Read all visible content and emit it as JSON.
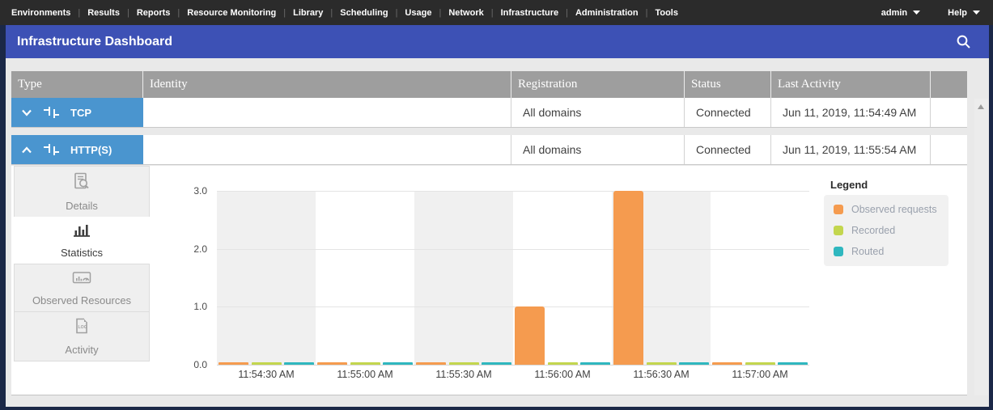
{
  "nav": {
    "items": [
      "Environments",
      "Results",
      "Reports",
      "Resource Monitoring",
      "Library",
      "Scheduling",
      "Usage",
      "Network",
      "Infrastructure",
      "Administration",
      "Tools"
    ],
    "user_menu": "admin",
    "help_menu": "Help"
  },
  "header": {
    "title": "Infrastructure Dashboard"
  },
  "table": {
    "columns": [
      "Type",
      "Identity",
      "Registration",
      "Status",
      "Last Activity"
    ],
    "rows": [
      {
        "type": "TCP",
        "expanded": false,
        "identity": "",
        "registration": "All domains",
        "status": "Connected",
        "last_activity": "Jun 11, 2019, 11:54:49 AM"
      },
      {
        "type": "HTTP(S)",
        "expanded": true,
        "identity": "",
        "registration": "All domains",
        "status": "Connected",
        "last_activity": "Jun 11, 2019, 11:55:54 AM"
      }
    ]
  },
  "tabs": [
    {
      "label": "Details",
      "icon": "details-icon",
      "selected": false
    },
    {
      "label": "Statistics",
      "icon": "statistics-icon",
      "selected": true
    },
    {
      "label": "Observed Resources",
      "icon": "observed-resources-icon",
      "selected": false
    },
    {
      "label": "Activity",
      "icon": "activity-log-icon",
      "selected": false
    }
  ],
  "chart_data": {
    "type": "bar",
    "title": "",
    "categories": [
      "11:54:30 AM",
      "11:55:00 AM",
      "11:55:30 AM",
      "11:56:00 AM",
      "11:56:30 AM",
      "11:57:00 AM"
    ],
    "series": [
      {
        "name": "Observed requests",
        "color": "#f59b4f",
        "values": [
          0,
          0,
          0,
          1,
          3,
          0
        ]
      },
      {
        "name": "Recorded",
        "color": "#c3d64e",
        "values": [
          0,
          0,
          0,
          0,
          0,
          0
        ]
      },
      {
        "name": "Routed",
        "color": "#2fb7bf",
        "values": [
          0,
          0,
          0,
          0,
          0,
          0
        ]
      }
    ],
    "ylim": [
      0,
      3
    ],
    "yticks": [
      "0.0",
      "1.0",
      "2.0",
      "3.0"
    ],
    "grid": true,
    "band_colors": [
      "#f0f0f0",
      "#ffffff"
    ],
    "legend_title": "Legend",
    "legend_position": "right"
  },
  "colors": {
    "accent_blue": "#3d51b5",
    "row_type_blue": "#4a95cf",
    "header_gray": "#9e9e9e",
    "nav_dark": "#2b2b2b"
  }
}
